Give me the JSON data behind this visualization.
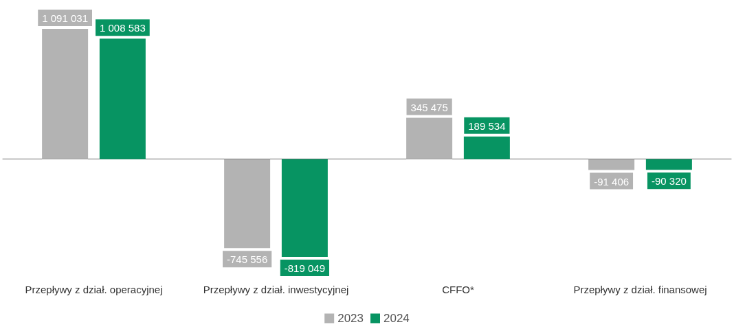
{
  "chart_data": {
    "type": "bar",
    "categories": [
      "Przepływy z dział. operacyjnej",
      "Przepływy z dział. inwestycyjnej",
      "CFFO*",
      "Przepływy z dział. finansowej"
    ],
    "series": [
      {
        "name": "2023",
        "color": "#b3b3b3",
        "values": [
          1091031,
          -745556,
          345475,
          -91406
        ],
        "value_labels": [
          "1 091 031",
          "-745 556",
          "345 475",
          "-91 406"
        ]
      },
      {
        "name": "2024",
        "color": "#079462",
        "values": [
          1008583,
          -819049,
          189534,
          -90320
        ],
        "value_labels": [
          "1 008 583",
          "-819 049",
          "189 534",
          "-90 320"
        ]
      }
    ],
    "legend": "bottom"
  }
}
